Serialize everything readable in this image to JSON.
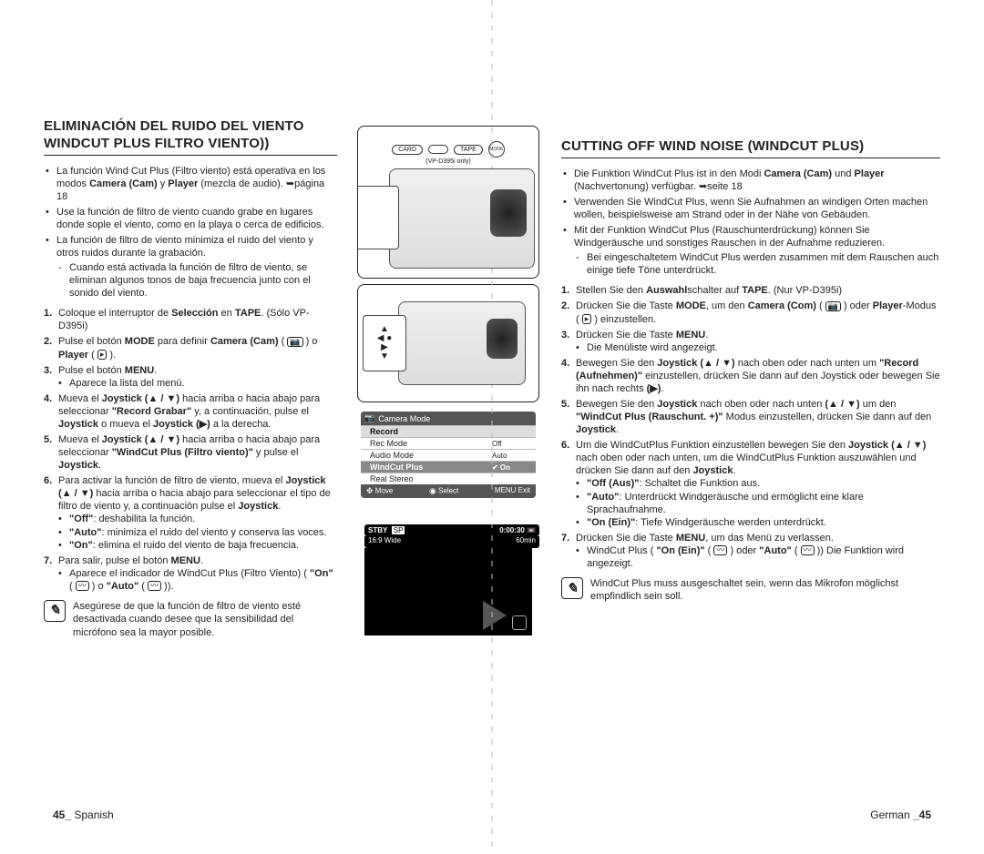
{
  "left": {
    "title_line1": "ELIMINACIÓN DEL RUIDO DEL VIENTO",
    "title_line2": "WINDCUT PLUS FILTRO VIENTO))",
    "bullets": [
      {
        "text": "La función Wind Cut Plus (Filtro viento) está operativa en los modos ",
        "bold": "Camera (Cam)",
        "mid": " y ",
        "bold2": "Player",
        "tail": " (mezcla de audio). ➥página 18"
      },
      {
        "text": "Use la función de filtro de viento cuando grabe en lugares donde sople el viento, como en la playa o cerca de edificios."
      },
      {
        "text": "La función de filtro de viento minimiza el ruido del viento y otros ruidos durante la grabación.",
        "sub": "Cuando está activada la función de filtro de viento, se eliminan algunos tonos de baja frecuencia junto con el sonido del viento."
      }
    ],
    "steps": [
      {
        "num": "1.",
        "html": "Coloque el interruptor de <b>Selección</b> en <b>TAPE</b>. (Sólo VP-D395i)"
      },
      {
        "num": "2.",
        "html": "Pulse el botón <b>MODE</b> para definir <b>Camera (Cam)</b> ( <span class='icon-box'>📷</span> ) o <b>Player</b> ( <span class='icon-box'>▸</span> )."
      },
      {
        "num": "3.",
        "html": "Pulse el botón <b>MENU</b>.",
        "inner": [
          "Aparece la lista del menú."
        ]
      },
      {
        "num": "4.",
        "html": "Mueva el <b>Joystick (▲ / ▼)</b> hacia arriba o hacia abajo para seleccionar <b>\"Record Grabar\"</b> y, a continuación, pulse el <b>Joystick</b> o mueva el <b>Joystick (▶)</b> a la derecha."
      },
      {
        "num": "5.",
        "html": "Mueva el <b>Joystick (▲ / ▼)</b> hacia arriba o hacia abajo para seleccionar <b>\"WindCut Plus (Filtro viento)\"</b> y pulse el <b>Joystick</b>."
      },
      {
        "num": "6.",
        "html": "Para activar la función de filtro de viento, mueva el <b>Joystick (▲ / ▼)</b> hacia arriba o hacia abajo para seleccionar el tipo de filtro de viento y, a continuación pulse el <b>Joystick</b>.",
        "inner": [
          "<b>\"Off\"</b>: deshabilita la función.",
          "<b>\"Auto\"</b>: minimiza el ruido del viento y conserva las voces.",
          "<b>\"On\"</b>: elimina el ruido del viento de baja frecuencia."
        ]
      },
      {
        "num": "7.",
        "html": "Para salir, pulse el botón <b>MENU</b>.",
        "inner": [
          "Aparece el indicador de WindCut Plus (Filtro Viento) ( <b>\"On\"</b> ( <span class='icon-box'>〰</span> ) o <b>\"Auto\"</b> ( <span class='icon-box'>〰</span> ))."
        ]
      }
    ],
    "note": "Asegúrese de que la función de filtro de viento esté desactivada cuando desee que la sensibilidad del micrófono sea la mayor posible.",
    "footer_num": "45_",
    "footer_lang": " Spanish"
  },
  "center": {
    "labels": {
      "card": "CARD",
      "tape": "TAPE",
      "mode": "MODE",
      "model": "(VP-D395i only)"
    },
    "menu": {
      "header": "Camera Mode",
      "items": [
        {
          "label": "Record",
          "hl": true
        },
        {
          "label": "Rec Mode"
        },
        {
          "label": "Audio Mode"
        },
        {
          "label": "WindCut Plus",
          "sel": true,
          "opts": [
            "Off",
            "Auto",
            "✔ On"
          ]
        },
        {
          "label": "Real Stereo"
        }
      ],
      "footer_move": "Move",
      "footer_select": "Select",
      "footer_exit": "MENU Exit"
    },
    "status": {
      "stby": "STBY",
      "sp": "SP",
      "time": "0:00:30",
      "wide": "16:9 Wide",
      "batt": "60min"
    }
  },
  "right": {
    "title": "CUTTING OFF WIND NOISE (WINDCUT PLUS)",
    "bullets": [
      {
        "html": "Die Funktion WindCut Plus ist in den Modi <b>Camera (Cam)</b> und <b>Player</b> (Nachvertonung) verfügbar. ➥seite 18"
      },
      {
        "html": "Verwenden Sie WindCut Plus, wenn Sie Aufnahmen an windigen Orten machen wollen, beispielsweise am Strand oder in der Nähe von Gebäuden."
      },
      {
        "html": "Mit der Funktion WindCut Plus (Rauschunterdrückung) können Sie Windgeräusche und sonstiges Rauschen in der Aufnahme reduzieren.",
        "sub": "Bei eingeschaltetem WindCut Plus werden zusammen mit dem Rauschen auch einige tiefe Töne unterdrückt."
      }
    ],
    "steps": [
      {
        "num": "1.",
        "html": "Stellen Sie den <b>Auswahl</b>schalter auf <b>TAPE</b>. (Nur VP-D395i)"
      },
      {
        "num": "2.",
        "html": "Drücken Sie die Taste <b>MODE</b>, um den <b>Camera (Com)</b> ( <span class='icon-box'>📷</span> ) oder <b>Player</b>-Modus ( <span class='icon-box'>▸</span> ) einzustellen."
      },
      {
        "num": "3.",
        "html": "Drücken Sie die Taste <b>MENU</b>.",
        "inner": [
          "Die Menüliste wird angezeigt."
        ]
      },
      {
        "num": "4.",
        "html": "Bewegen Sie den <b>Joystick (▲ / ▼)</b> nach oben oder nach unten um <b>\"Record (Aufnehmen)\"</b> einzustellen, drücken Sie dann auf den Joystick oder bewegen Sie ihn nach rechts <b>(▶)</b>."
      },
      {
        "num": "5.",
        "html": "Bewegen Sie den <b>Joystick</b> nach oben oder nach unten <b>(▲ / ▼)</b> um den <b>\"WindCut Plus (Rauschunt. +)\"</b> Modus einzustellen, drücken Sie dann auf den <b>Joystick</b>."
      },
      {
        "num": "6.",
        "html": "Um die WindCutPlus Funktion einzustellen bewegen Sie den <b>Joystick (▲ / ▼)</b> nach oben oder nach unten, um die WindCutPlus Funktion auszuwählen und drücken Sie dann auf den <b>Joystick</b>.",
        "inner": [
          "<b>\"Off (Aus)\"</b>: Schaltet die Funktion aus.",
          "<b>\"Auto\"</b>: Unterdrückt Windgeräusche und ermöglicht eine klare Sprachaufnahme.",
          "<b>\"On (Ein)\"</b>: Tiefe Windgeräusche werden unterdrückt."
        ]
      },
      {
        "num": "7.",
        "html": "Drücken Sie die Taste <b>MENU</b>, um das Menü zu verlassen.",
        "inner": [
          "WindCut Plus ( <b>\"On (Ein)\"</b> ( <span class='icon-box'>〰</span> ) oder <b>\"Auto\"</b> ( <span class='icon-box'>〰</span> )) Die Funktion wird angezeigt."
        ]
      }
    ],
    "note": "WindCut Plus muss ausgeschaltet sein, wenn das Mikrofon möglichst empfindlich sein soll.",
    "footer_lang": "German ",
    "footer_num": "_45"
  }
}
